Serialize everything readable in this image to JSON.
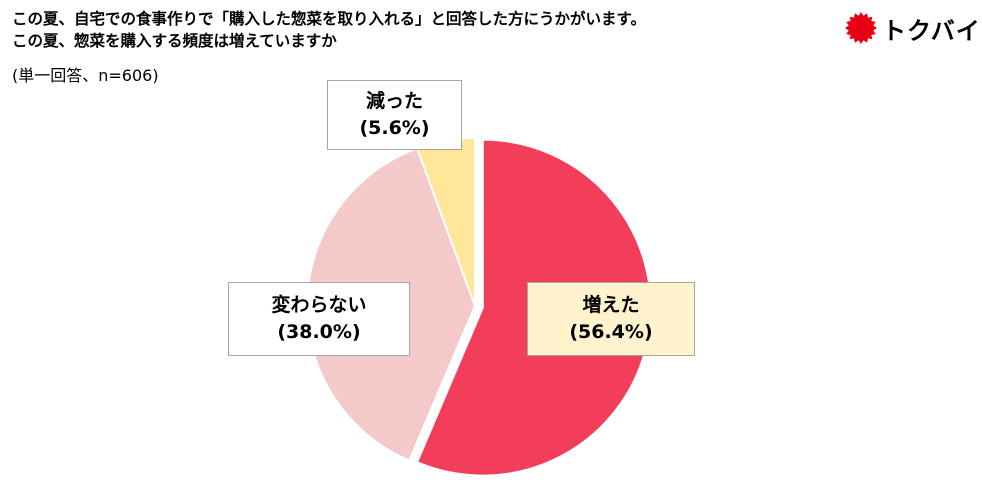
{
  "header": {
    "title_line1": "この夏、自宅での食事作りで「購入した惣菜を取り入れる」と回答した方にうかがいます。",
    "title_line2": "この夏、惣菜を購入する頻度は増えていますか",
    "subtitle": "(単一回答、n=606)"
  },
  "logo": {
    "text": "トクバイ",
    "color": "#e60012"
  },
  "chart_data": {
    "type": "pie",
    "slices": [
      {
        "label": "増えた",
        "value": 56.4,
        "value_label": "(56.4%)",
        "color": "#f23d5b",
        "label_bg": "#fff2cc",
        "exploded": true
      },
      {
        "label": "変わらない",
        "value": 38.0,
        "value_label": "(38.0%)",
        "color": "#f3c9c9",
        "label_bg": "#ffffff",
        "exploded": false
      },
      {
        "label": "減った",
        "value": 5.6,
        "value_label": "(5.6%)",
        "color": "#ffe699",
        "label_bg": "#ffffff",
        "exploded": false
      }
    ],
    "start_angle": "12 o'clock",
    "direction": "clockwise"
  }
}
